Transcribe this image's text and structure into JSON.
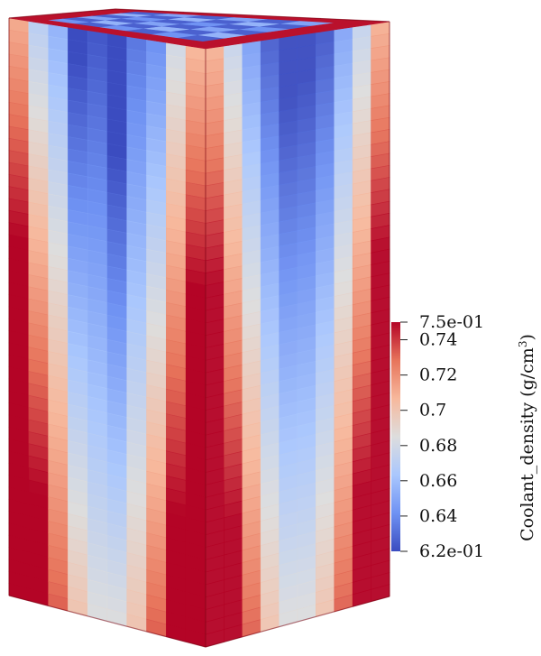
{
  "colorbar": {
    "title": "Coolant_density (g/cm",
    "title_superscript": "3",
    "title_suffix": ")",
    "min": 0.62,
    "max": 0.75,
    "ticks": [
      {
        "value": 0.75,
        "label": "7.5e-01"
      },
      {
        "value": 0.74,
        "label": "0.74"
      },
      {
        "value": 0.72,
        "label": "0.72"
      },
      {
        "value": 0.7,
        "label": "0.7"
      },
      {
        "value": 0.68,
        "label": "0.68"
      },
      {
        "value": 0.66,
        "label": "0.66"
      },
      {
        "value": 0.64,
        "label": "0.64"
      },
      {
        "value": 0.62,
        "label": "6.2e-01"
      }
    ],
    "colormap": [
      "#3b4cc0",
      "#6f92f3",
      "#aac7fd",
      "#dddddd",
      "#f7b89c",
      "#e7745b",
      "#b40426"
    ]
  },
  "render": {
    "edge_color": "#7a0a18",
    "low_color": "#2a3f9c",
    "high_color": "#8a0a1e"
  }
}
